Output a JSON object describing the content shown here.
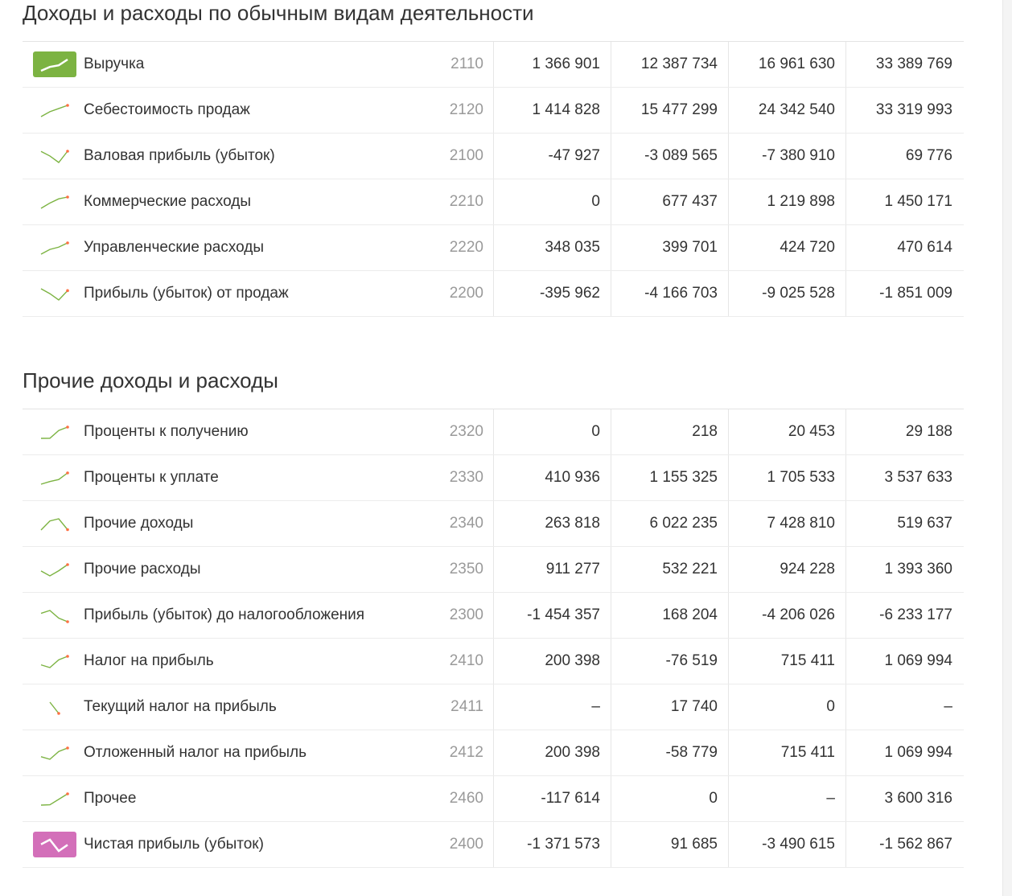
{
  "sections": [
    {
      "title": "Доходы и расходы по обычным видам деятельности",
      "rows": [
        {
          "name": "Выручка",
          "code": "2110",
          "values": [
            "1 366 901",
            "12 387 734",
            "16 961 630",
            "33 389 769"
          ]
        },
        {
          "name": "Себестоимость продаж",
          "code": "2120",
          "values": [
            "1 414 828",
            "15 477 299",
            "24 342 540",
            "33 319 993"
          ]
        },
        {
          "name": "Валовая прибыль (убыток)",
          "code": "2100",
          "values": [
            "-47 927",
            "-3 089 565",
            "-7 380 910",
            "69 776"
          ]
        },
        {
          "name": "Коммерческие расходы",
          "code": "2210",
          "values": [
            "0",
            "677 437",
            "1 219 898",
            "1 450 171"
          ]
        },
        {
          "name": "Управленческие расходы",
          "code": "2220",
          "values": [
            "348 035",
            "399 701",
            "424 720",
            "470 614"
          ]
        },
        {
          "name": "Прибыль (убыток) от продаж",
          "code": "2200",
          "values": [
            "-395 962",
            "-4 166 703",
            "-9 025 528",
            "-1 851 009"
          ]
        }
      ]
    },
    {
      "title": "Прочие доходы и расходы",
      "rows": [
        {
          "name": "Проценты к получению",
          "code": "2320",
          "values": [
            "0",
            "218",
            "20 453",
            "29 188"
          ]
        },
        {
          "name": "Проценты к уплате",
          "code": "2330",
          "values": [
            "410 936",
            "1 155 325",
            "1 705 533",
            "3 537 633"
          ]
        },
        {
          "name": "Прочие доходы",
          "code": "2340",
          "values": [
            "263 818",
            "6 022 235",
            "7 428 810",
            "519 637"
          ]
        },
        {
          "name": "Прочие расходы",
          "code": "2350",
          "values": [
            "911 277",
            "532 221",
            "924 228",
            "1 393 360"
          ]
        },
        {
          "name": "Прибыль (убыток) до налогообложения",
          "code": "2300",
          "values": [
            "-1 454 357",
            "168 204",
            "-4 206 026",
            "-6 233 177"
          ]
        },
        {
          "name": "Налог на прибыль",
          "code": "2410",
          "values": [
            "200 398",
            "-76 519",
            "715 411",
            "1 069 994"
          ]
        },
        {
          "name": "Текущий налог на прибыль",
          "code": "2411",
          "values": [
            "–",
            "17 740",
            "0",
            "–"
          ]
        },
        {
          "name": "Отложенный налог на прибыль",
          "code": "2412",
          "values": [
            "200 398",
            "-58 779",
            "715 411",
            "1 069 994"
          ]
        },
        {
          "name": "Прочее",
          "code": "2460",
          "values": [
            "-117 614",
            "0",
            "–",
            "3 600 316"
          ]
        },
        {
          "name": "Чистая прибыль (убыток)",
          "code": "2400",
          "values": [
            "-1 371 573",
            "91 685",
            "-3 490 615",
            "-1 562 867"
          ]
        }
      ]
    }
  ]
}
